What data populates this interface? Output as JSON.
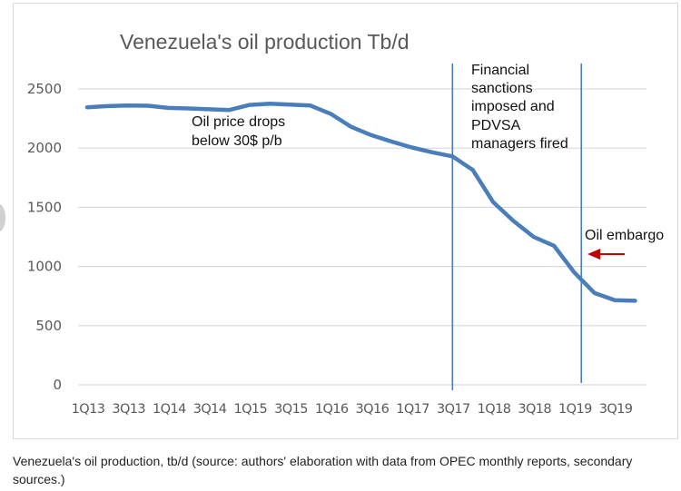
{
  "chart_data": {
    "type": "line",
    "title": "Venezuela's oil production Tb/d",
    "xlabel": "",
    "ylabel": "",
    "ylim": [
      0,
      2500
    ],
    "yticks": [
      0,
      500,
      1000,
      1500,
      2000,
      2500
    ],
    "grid": true,
    "x": [
      "1Q13",
      "2Q13",
      "3Q13",
      "4Q13",
      "1Q14",
      "2Q14",
      "3Q14",
      "4Q14",
      "1Q15",
      "2Q15",
      "3Q15",
      "4Q15",
      "1Q16",
      "2Q16",
      "3Q16",
      "4Q16",
      "1Q17",
      "2Q17",
      "3Q17",
      "4Q17",
      "1Q18",
      "2Q18",
      "3Q18",
      "4Q18",
      "1Q19",
      "2Q19",
      "3Q19",
      "4Q19"
    ],
    "xtick_labels": [
      "1Q13",
      "3Q13",
      "1Q14",
      "3Q14",
      "1Q15",
      "3Q15",
      "1Q16",
      "3Q16",
      "1Q17",
      "3Q17",
      "1Q18",
      "3Q18",
      "1Q19",
      "3Q19"
    ],
    "series": [
      {
        "name": "Oil production (Tb/d)",
        "color": "#4a7ebb",
        "values": [
          2345,
          2355,
          2360,
          2358,
          2340,
          2335,
          2328,
          2322,
          2365,
          2375,
          2368,
          2360,
          2290,
          2180,
          2110,
          2055,
          2005,
          1965,
          1930,
          1815,
          1545,
          1385,
          1250,
          1175,
          950,
          775,
          715,
          710
        ]
      }
    ],
    "vertical_markers": [
      {
        "at": "3Q17",
        "color": "#4a7ebb"
      },
      {
        "at": "1Q19",
        "color": "#4a7ebb"
      }
    ],
    "annotations": [
      {
        "id": "price",
        "lines": [
          "Oil price drops",
          "below 30$ p/b"
        ]
      },
      {
        "id": "sanctions",
        "lines": [
          "Financial",
          "sanctions",
          "imposed and",
          "PDVSA",
          "managers fired"
        ]
      },
      {
        "id": "embargo",
        "lines": [
          "Oil embargo"
        ],
        "arrow_color": "#c00000"
      }
    ]
  },
  "caption": "Venezuela's oil production, tb/d (source: authors' elaboration with data from OPEC monthly reports, secondary sources.)"
}
